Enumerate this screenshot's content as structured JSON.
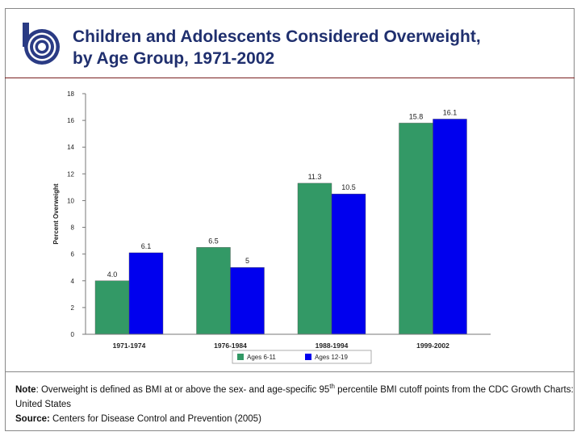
{
  "slide": {
    "title_line1": "Children and Adolescents Considered Overweight,",
    "title_line2": "by Age Group, 1971-2002",
    "logo_icon": "organization-logo-icon"
  },
  "notes": {
    "note_label": "Note",
    "note_text_1": ": Overweight is defined as BMI at or above the sex- and age-specific 95",
    "note_superscript": "th",
    "note_text_2": " percentile BMI cutoff points from the CDC Growth Charts: United States",
    "source_label": "Source:",
    "source_text": " Centers for Disease Control and Prevention (2005)"
  },
  "chart_data": {
    "type": "bar",
    "title": "Children and Adolescents Considered Overweight, by Age Group, 1971-2002",
    "xlabel": "",
    "ylabel": "Percent Overweight",
    "ylim": [
      0,
      18
    ],
    "yticks": [
      0,
      2,
      4,
      6,
      8,
      10,
      12,
      14,
      16,
      18
    ],
    "grid": false,
    "legend_position": "bottom",
    "categories": [
      "1971-1974",
      "1976-1984",
      "1988-1994",
      "1999-2002"
    ],
    "series": [
      {
        "name": "Ages 6-11",
        "color": "#339966",
        "values": [
          4.0,
          6.5,
          11.3,
          15.8
        ],
        "labels": [
          "4.0",
          "6.5",
          "11.3",
          "15.8"
        ]
      },
      {
        "name": "Ages 12-19",
        "color": "#0000ee",
        "values": [
          6.1,
          5,
          10.5,
          16.1
        ],
        "labels": [
          "6.1",
          "5",
          "10.5",
          "16.1"
        ]
      }
    ]
  }
}
